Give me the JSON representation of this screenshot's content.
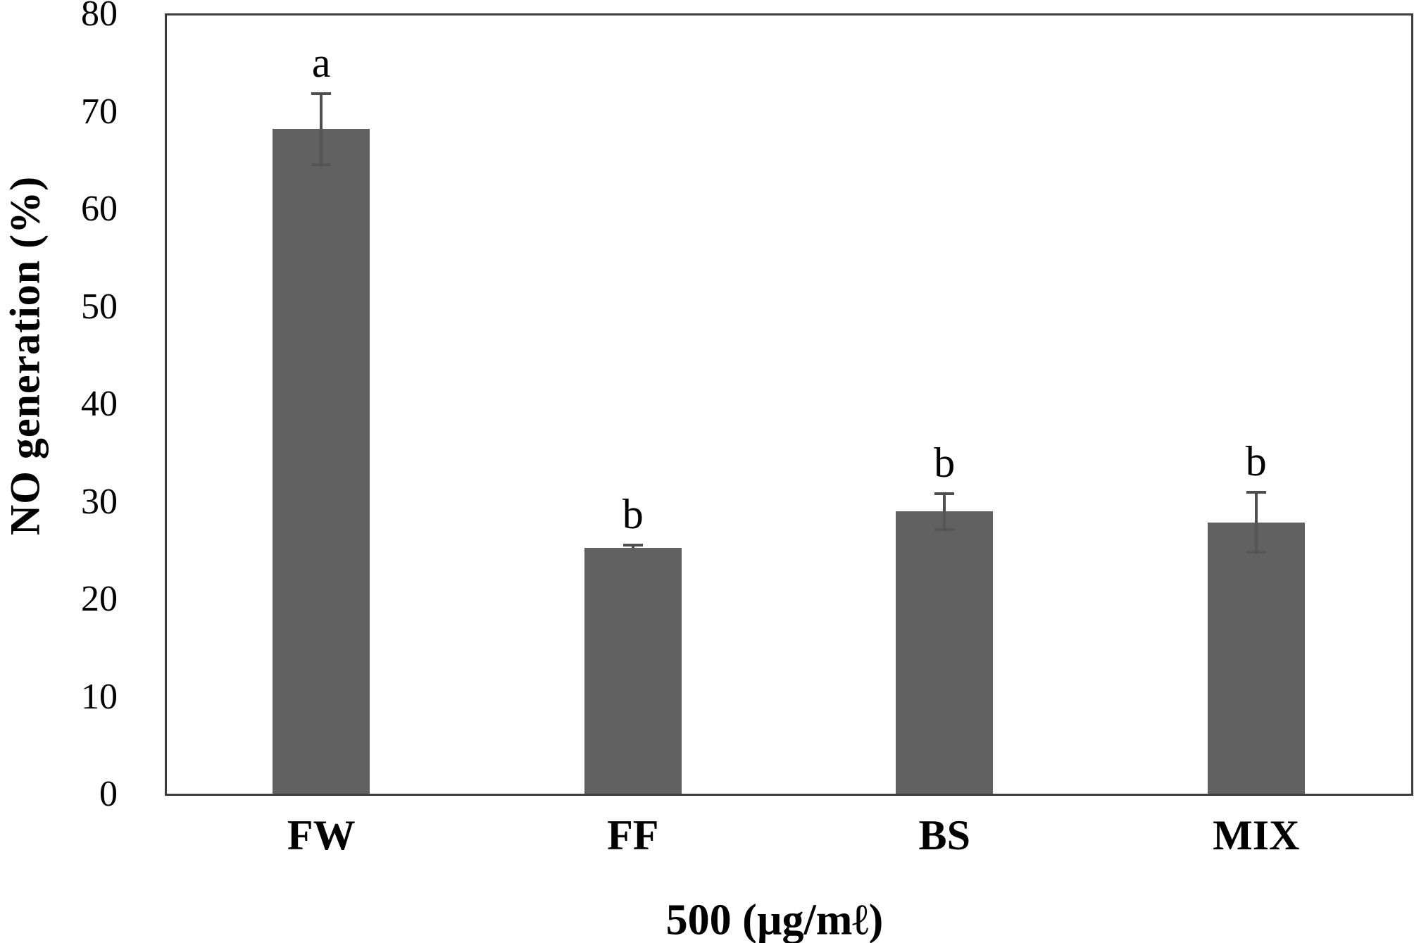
{
  "chart_data": {
    "type": "bar",
    "title": "",
    "xlabel": "500 (µg/mℓ)",
    "ylabel": "NO generation (%)",
    "categories": [
      "FW",
      "FF",
      "BS",
      "MIX"
    ],
    "values": [
      68.2,
      25.3,
      29.0,
      27.9
    ],
    "error_bars": [
      3.8,
      0.4,
      2.0,
      3.2
    ],
    "sig_letters": [
      "a",
      "b",
      "b",
      "b"
    ],
    "ylim": [
      0,
      80
    ],
    "yticks": [
      0,
      10,
      20,
      30,
      40,
      50,
      60,
      70,
      80
    ],
    "grid": false,
    "legend": "none",
    "bar_color": "#616161",
    "error_bar_color": "#4f4f4f",
    "axis_color": "#3c3c3c",
    "text_color": "#000000",
    "background_color": "#ffffff"
  }
}
